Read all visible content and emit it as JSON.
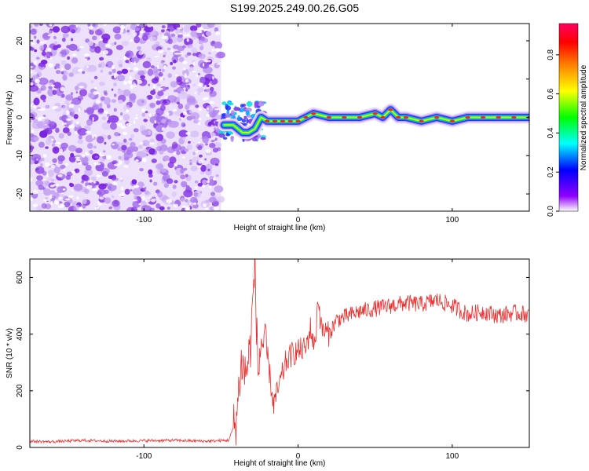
{
  "title": "S199.2025.249.00.26.G05",
  "chart_data": [
    {
      "type": "heatmap",
      "xlabel": "Height of straight line (km)",
      "ylabel": "Frequency (Hz)",
      "xlim": [
        -174,
        150
      ],
      "ylim": [
        -24.5,
        24.5
      ],
      "xticks": [
        -100,
        0,
        100
      ],
      "yticks": [
        -20,
        -10,
        0,
        10,
        20
      ],
      "colorbar": {
        "label": "Normalized spectral amplitude",
        "range": [
          0.0,
          0.96
        ],
        "ticks": [
          0.0,
          0.2,
          0.4,
          0.6,
          0.8
        ],
        "colors": [
          "#ffffff",
          "#8f00ff",
          "#0000ff",
          "#00ffff",
          "#00ff00",
          "#ffff00",
          "#ff8000",
          "#ff0000",
          "#ff0060"
        ]
      },
      "noise_region_x": [
        -174,
        -50
      ],
      "ridge": [
        {
          "x": -48,
          "y": -2
        },
        {
          "x": -42,
          "y": -2
        },
        {
          "x": -36,
          "y": -4
        },
        {
          "x": -32,
          "y": -4
        },
        {
          "x": -28,
          "y": -3
        },
        {
          "x": -24,
          "y": 0
        },
        {
          "x": -20,
          "y": -1
        },
        {
          "x": -15,
          "y": -1
        },
        {
          "x": -10,
          "y": -1
        },
        {
          "x": -5,
          "y": -1
        },
        {
          "x": 0,
          "y": -1
        },
        {
          "x": 5,
          "y": 0
        },
        {
          "x": 10,
          "y": 1
        },
        {
          "x": 20,
          "y": 0
        },
        {
          "x": 30,
          "y": 0
        },
        {
          "x": 40,
          "y": 0
        },
        {
          "x": 50,
          "y": 1
        },
        {
          "x": 55,
          "y": 0
        },
        {
          "x": 60,
          "y": 2
        },
        {
          "x": 65,
          "y": 0
        },
        {
          "x": 70,
          "y": 0
        },
        {
          "x": 80,
          "y": -1
        },
        {
          "x": 90,
          "y": 0
        },
        {
          "x": 100,
          "y": -1
        },
        {
          "x": 110,
          "y": 0
        },
        {
          "x": 120,
          "y": 0
        },
        {
          "x": 130,
          "y": 0
        },
        {
          "x": 140,
          "y": 0
        },
        {
          "x": 150,
          "y": 0
        }
      ]
    },
    {
      "type": "line",
      "xlabel": "Height of straight line (km)",
      "ylabel": "SNR (10 * v/v)",
      "xlim": [
        -174,
        150
      ],
      "ylim": [
        0,
        665
      ],
      "xticks": [
        -100,
        0,
        100
      ],
      "yticks": [
        0,
        200,
        400,
        600
      ],
      "color": "#e83030",
      "series": [
        {
          "x": [
            -174,
            -160,
            -140,
            -120,
            -100,
            -80,
            -60,
            -45,
            -40,
            -37,
            -34,
            -31,
            -28,
            -26,
            -24,
            -20,
            -16,
            -12,
            -8,
            -4,
            0,
            5,
            8,
            11,
            13,
            15,
            20,
            25,
            30,
            40,
            50,
            60,
            70,
            80,
            90,
            100,
            110,
            120,
            130,
            140,
            150
          ],
          "y": [
            22,
            20,
            25,
            22,
            24,
            25,
            22,
            25,
            100,
            300,
            260,
            350,
            650,
            250,
            380,
            330,
            150,
            220,
            300,
            330,
            340,
            350,
            420,
            350,
            540,
            420,
            400,
            450,
            460,
            480,
            490,
            500,
            510,
            505,
            520,
            500,
            470,
            480,
            465,
            475,
            470
          ]
        }
      ]
    }
  ]
}
